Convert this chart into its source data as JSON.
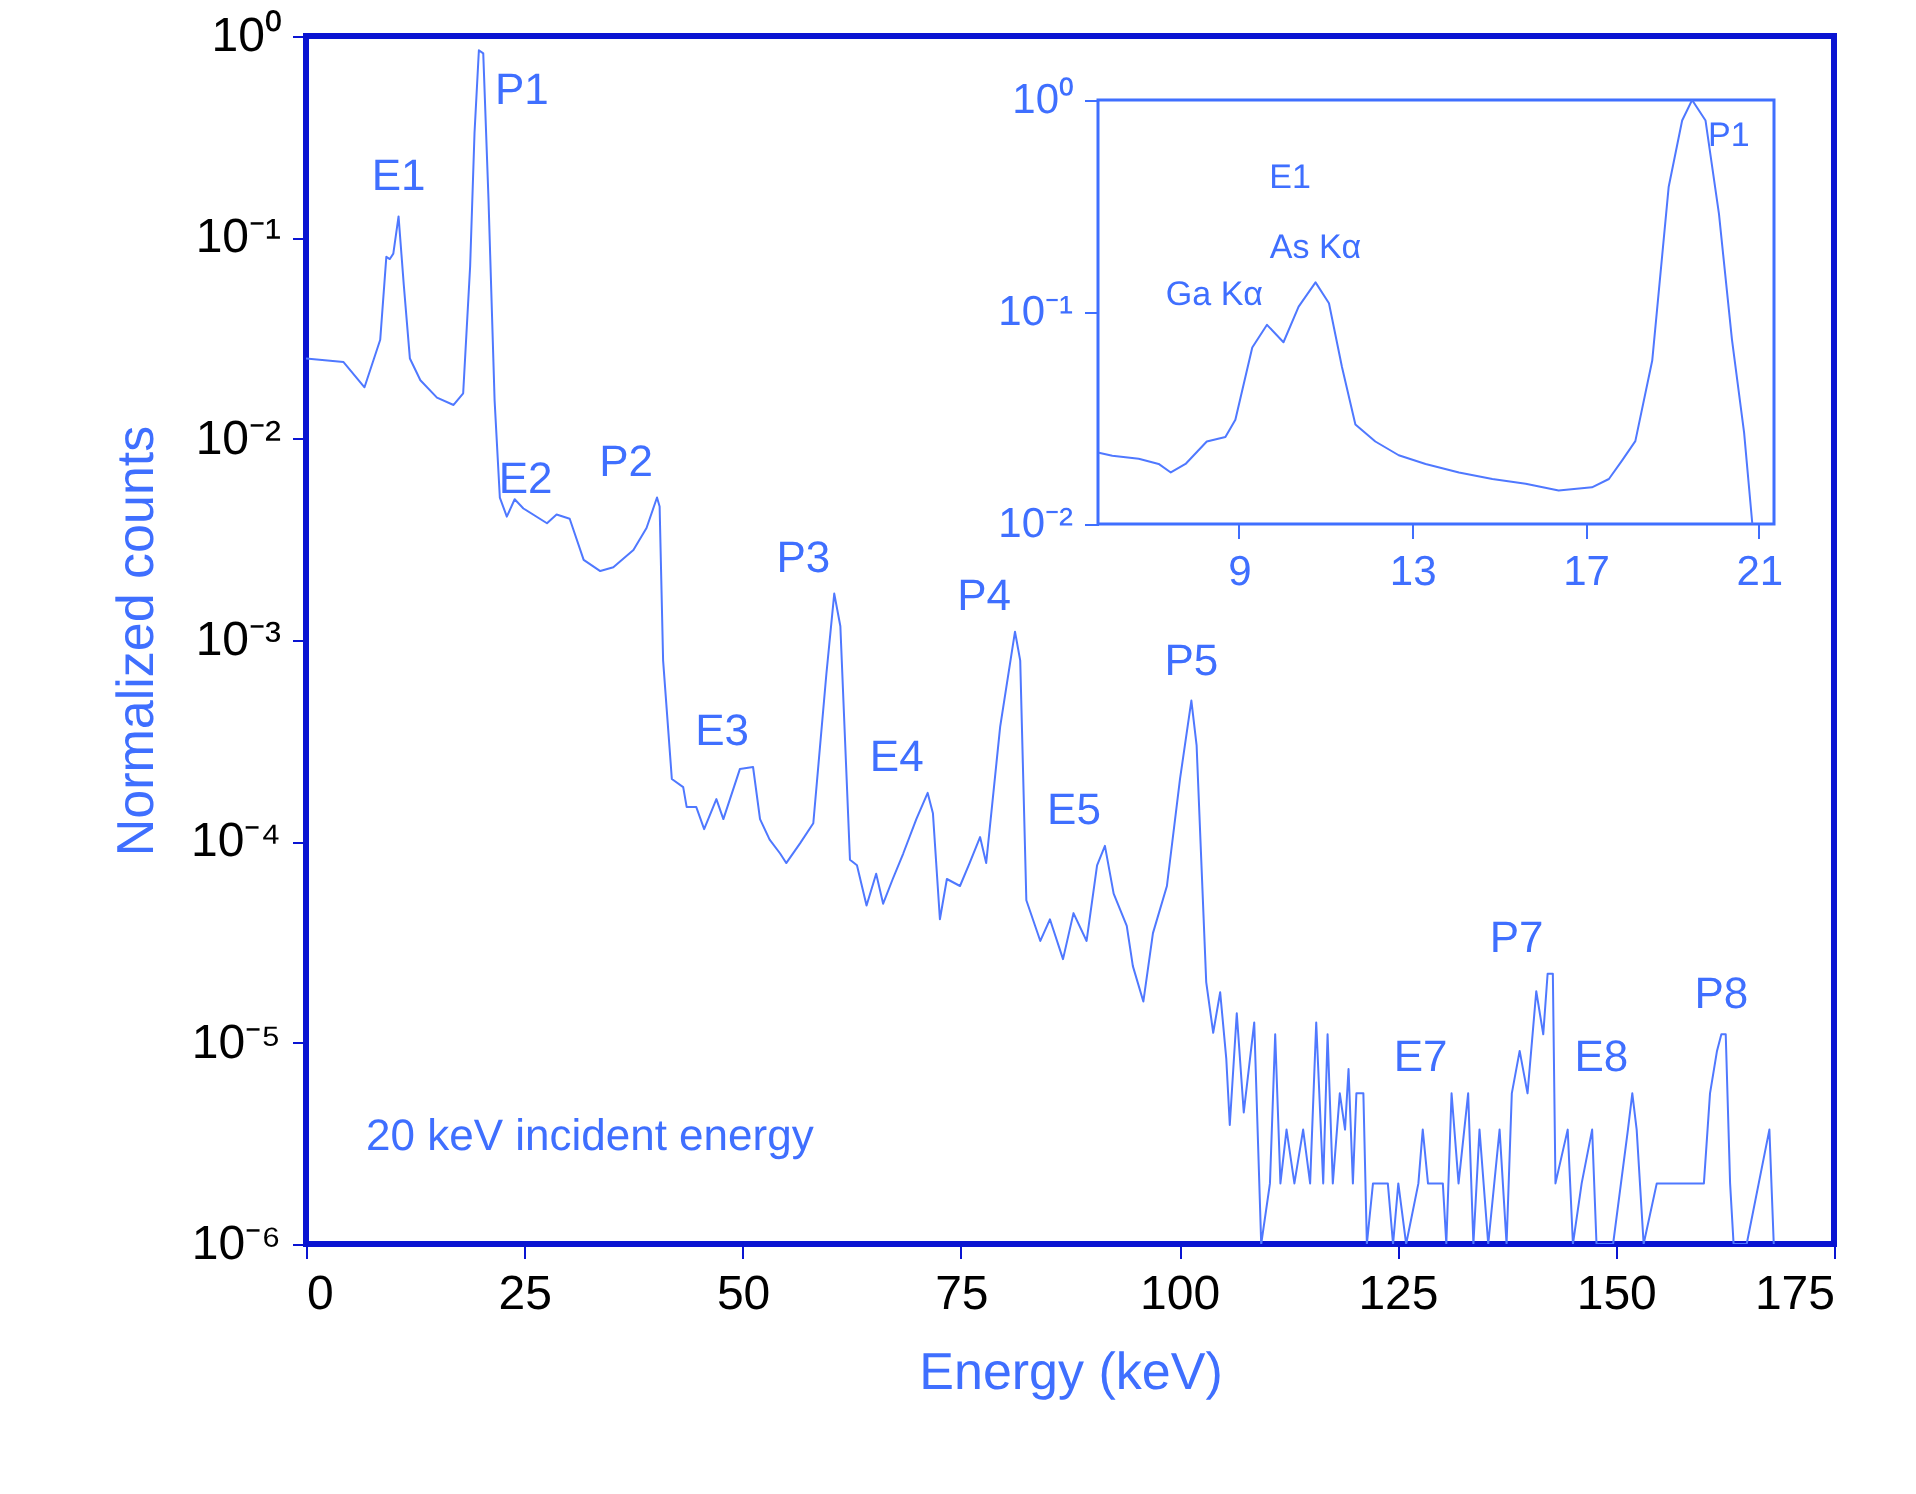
{
  "chart_data": [
    {
      "type": "line",
      "xlabel": "Energy (keV)",
      "ylabel": "Normalized counts",
      "log": "y",
      "xlim": [
        0,
        175
      ],
      "xticks": [
        0,
        25,
        50,
        75,
        100,
        125,
        150,
        175
      ],
      "ylim": [
        1e-06,
        1
      ],
      "yticks": [
        {
          "value": 1,
          "label": "10⁰"
        },
        {
          "value": 0.1,
          "label": "10⁻¹"
        },
        {
          "value": 0.01,
          "label": "10⁻²"
        },
        {
          "value": 0.001,
          "label": "10⁻³"
        },
        {
          "value": 0.0001,
          "label": "10⁻⁴"
        },
        {
          "value": 1e-05,
          "label": "10⁻⁵"
        },
        {
          "value": 1e-06,
          "label": "10⁻⁶"
        }
      ],
      "series": [
        {
          "color": "#4f78ff",
          "x": [
            0,
            4.3,
            6.7,
            8.5,
            9.2,
            9.6,
            10.0,
            10.6,
            11.2,
            11.9,
            13.1,
            15.0,
            16.9,
            18.0,
            18.8,
            19.3,
            19.8,
            20.3,
            20.9,
            21.6,
            22.2,
            23.0,
            23.9,
            24.9,
            27.6,
            28.7,
            30.2,
            31.8,
            33.7,
            35.2,
            37.5,
            39.0,
            40.2,
            40.5,
            40.9,
            41.9,
            43.2,
            43.6,
            44.7,
            45.6,
            47.0,
            47.8,
            49.7,
            51.2,
            52.0,
            53.1,
            54.3,
            55.0,
            56.6,
            58.1,
            59.6,
            60.5,
            61.2,
            62.3,
            63.1,
            64.2,
            65.3,
            66.1,
            67.2,
            68.4,
            69.9,
            71.2,
            71.8,
            72.6,
            73.4,
            74.9,
            76.0,
            77.2,
            77.9,
            79.5,
            81.2,
            81.8,
            82.5,
            84.1,
            85.2,
            86.7,
            87.9,
            89.4,
            90.6,
            91.5,
            92.5,
            94.0,
            94.7,
            95.9,
            97.0,
            98.6,
            100.1,
            101.4,
            102.0,
            103.1,
            103.9,
            104.7,
            105.4,
            105.8,
            106.6,
            107.4,
            108.6,
            109.4,
            110.4,
            111.0,
            111.6,
            112.3,
            113.2,
            114.2,
            115.0,
            115.7,
            116.5,
            117.0,
            117.6,
            118.4,
            119.0,
            119.4,
            119.9,
            120.3,
            121.1,
            121.5,
            122.2,
            123.9,
            124.5,
            125.1,
            126.0,
            127.4,
            127.9,
            128.5,
            130.2,
            130.6,
            131.2,
            132.0,
            133.1,
            133.7,
            134.4,
            135.4,
            136.7,
            137.5,
            138.1,
            139.0,
            139.9,
            140.9,
            141.7,
            142.2,
            142.8,
            143.1,
            144.5,
            145.1,
            146.1,
            147.3,
            147.8,
            149.7,
            151.4,
            151.9,
            152.4,
            153.2,
            154.7,
            155.9,
            157.0,
            158.2,
            160.1,
            160.8,
            161.6,
            162.1,
            162.6,
            163.1,
            163.5,
            165.0,
            167.6,
            168.1
          ],
          "values": [
            0.025,
            0.024,
            0.018,
            0.031,
            0.08,
            0.078,
            0.083,
            0.127,
            0.058,
            0.025,
            0.0195,
            0.016,
            0.0147,
            0.0168,
            0.072,
            0.33,
            0.85,
            0.82,
            0.155,
            0.0155,
            0.0051,
            0.0041,
            0.005,
            0.0045,
            0.0038,
            0.0042,
            0.004,
            0.0025,
            0.0022,
            0.0023,
            0.0028,
            0.0036,
            0.0051,
            0.0046,
            0.00079,
            0.000204,
            0.000186,
            0.000148,
            0.000148,
            0.000115,
            0.000162,
            0.000129,
            0.000229,
            0.000234,
            0.000129,
            0.000102,
            8.7e-05,
            7.8e-05,
            9.8e-05,
            0.000123,
            0.00068,
            0.0017,
            0.00117,
            8.1e-05,
            7.6e-05,
            4.8e-05,
            6.9e-05,
            4.9e-05,
            6.5e-05,
            8.7e-05,
            0.000129,
            0.000174,
            0.000138,
            4.1e-05,
            6.5e-05,
            6e-05,
            7.8e-05,
            0.000105,
            7.8e-05,
            0.00037,
            0.0011,
            0.00079,
            5.1e-05,
            3.2e-05,
            4.1e-05,
            2.6e-05,
            4.4e-05,
            3.2e-05,
            7.6e-05,
            9.5e-05,
            5.5e-05,
            3.8e-05,
            2.4e-05,
            1.6e-05,
            3.5e-05,
            6e-05,
            0.000204,
            0.0005,
            0.0003,
            2e-05,
            1.12e-05,
            1.78e-05,
            8.3e-06,
            3.9e-06,
            1.4e-05,
            4.5e-06,
            1.26e-05,
            1e-06,
            2e-06,
            1.1e-05,
            2e-06,
            3.7e-06,
            2e-06,
            3.7e-06,
            2e-06,
            1.26e-05,
            2e-06,
            1.1e-05,
            2e-06,
            5.6e-06,
            3.7e-06,
            7.4e-06,
            2e-06,
            5.6e-06,
            5.6e-06,
            1e-06,
            2e-06,
            2e-06,
            1e-06,
            2e-06,
            1e-06,
            2e-06,
            3.7e-06,
            2e-06,
            2e-06,
            1e-06,
            5.6e-06,
            2e-06,
            5.6e-06,
            1e-06,
            3.7e-06,
            1e-06,
            3.7e-06,
            1e-06,
            5.6e-06,
            9.1e-06,
            5.6e-06,
            1.8e-05,
            1.1e-05,
            2.2e-05,
            2.2e-05,
            2e-06,
            3.7e-06,
            1e-06,
            2e-06,
            3.7e-06,
            1e-06,
            1e-06,
            3.7e-06,
            5.6e-06,
            3.7e-06,
            1e-06,
            2e-06,
            2e-06,
            2e-06,
            2e-06,
            2e-06,
            5.6e-06,
            9.1e-06,
            1.1e-05,
            1.1e-05,
            2e-06,
            1e-06,
            1e-06,
            3.7e-06,
            1e-06
          ]
        }
      ],
      "annotations": [
        {
          "text": "E1",
          "x": 10.6,
          "y": 0.127
        },
        {
          "text": "P1",
          "x": 19.8,
          "y": 0.85
        },
        {
          "text": "E2",
          "x": 28.7,
          "y": 0.0042
        },
        {
          "text": "P2",
          "x": 40.2,
          "y": 0.0051
        },
        {
          "text": "E3",
          "x": 51.2,
          "y": 0.000234
        },
        {
          "text": "P3",
          "x": 60.5,
          "y": 0.0017
        },
        {
          "text": "E4",
          "x": 71.2,
          "y": 0.000174
        },
        {
          "text": "P4",
          "x": 81.2,
          "y": 0.0011
        },
        {
          "text": "E5",
          "x": 91.5,
          "y": 9.5e-05
        },
        {
          "text": "P5",
          "x": 101.4,
          "y": 0.0005
        },
        {
          "text": "E7",
          "x": 131.2,
          "y": 5.6e-06
        },
        {
          "text": "P7",
          "x": 142.2,
          "y": 2.2e-05
        },
        {
          "text": "E8",
          "x": 151.9,
          "y": 5.6e-06
        },
        {
          "text": "P8",
          "x": 162.1,
          "y": 1.1e-05
        },
        "20 keV incident energy"
      ]
    },
    {
      "type": "line",
      "log": "y",
      "xlim": [
        5.75,
        21.35
      ],
      "xticks": [
        9,
        13,
        17,
        21
      ],
      "ylim": [
        0.01,
        1
      ],
      "yticks": [
        {
          "value": 1,
          "label": "10⁰"
        },
        {
          "value": 0.1,
          "label": "10⁻¹"
        },
        {
          "value": 0.01,
          "label": "10⁻²"
        }
      ],
      "series": [
        {
          "color": "#4f78ff",
          "x": [
            5.77,
            6.08,
            6.69,
            7.15,
            7.43,
            7.77,
            8.26,
            8.69,
            8.92,
            9.31,
            9.65,
            10.03,
            10.38,
            10.77,
            11.08,
            11.38,
            11.69,
            12.15,
            12.69,
            13.31,
            14.08,
            14.85,
            15.62,
            16.38,
            17.15,
            17.54,
            17.85,
            18.15,
            18.54,
            18.92,
            19.23,
            19.46,
            19.77,
            20.08,
            20.38,
            20.66,
            20.85
          ],
          "values": [
            0.0217,
            0.021,
            0.0203,
            0.0192,
            0.0175,
            0.0192,
            0.0245,
            0.0257,
            0.031,
            0.068,
            0.087,
            0.072,
            0.106,
            0.138,
            0.11,
            0.055,
            0.0295,
            0.0245,
            0.0211,
            0.0192,
            0.0175,
            0.0163,
            0.0155,
            0.0144,
            0.0149,
            0.0163,
            0.02,
            0.0246,
            0.059,
            0.39,
            0.8,
            1.0,
            0.8,
            0.29,
            0.074,
            0.027,
            0.01
          ]
        }
      ],
      "annotations": [
        "E1",
        {
          "text": "P1",
          "x": 19.46,
          "y": 1.0
        },
        {
          "text": "Ga Kα",
          "x": 9.65,
          "y": 0.087
        },
        {
          "text": "As Kα",
          "x": 10.77,
          "y": 0.138
        }
      ]
    }
  ]
}
